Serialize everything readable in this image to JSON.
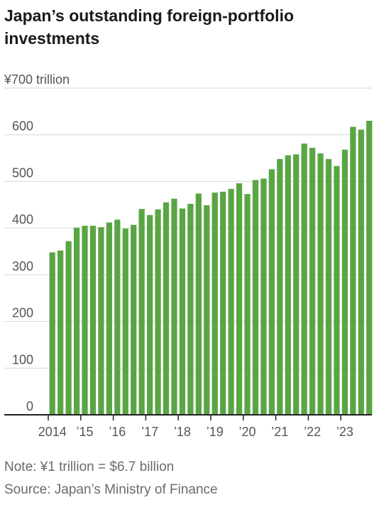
{
  "title": "Japan’s outstanding foreign-portfolio investments",
  "note": "Note: ¥1 trillion = $6.7 billion",
  "source": "Source: Japan’s Ministry of Finance",
  "chart_data": {
    "type": "bar",
    "title": "Japan’s outstanding foreign-portfolio investments",
    "unit_label": "¥700 trillion",
    "ylim": [
      0,
      700
    ],
    "yticks": [
      0,
      100,
      200,
      300,
      400,
      500,
      600
    ],
    "ytick_labels": [
      "0",
      "100",
      "200",
      "300",
      "400",
      "500",
      "600"
    ],
    "top_tick_label": "¥700 trillion",
    "grid": true,
    "bar_color": "#5aa543",
    "categories": [
      "2014 Q1",
      "2014 Q2",
      "2014 Q3",
      "2014 Q4",
      "2015 Q1",
      "2015 Q2",
      "2015 Q3",
      "2015 Q4",
      "2016 Q1",
      "2016 Q2",
      "2016 Q3",
      "2016 Q4",
      "2017 Q1",
      "2017 Q2",
      "2017 Q3",
      "2017 Q4",
      "2018 Q1",
      "2018 Q2",
      "2018 Q3",
      "2018 Q4",
      "2019 Q1",
      "2019 Q2",
      "2019 Q3",
      "2019 Q4",
      "2020 Q1",
      "2020 Q2",
      "2020 Q3",
      "2020 Q4",
      "2021 Q1",
      "2021 Q2",
      "2021 Q3",
      "2021 Q4",
      "2022 Q1",
      "2022 Q2",
      "2022 Q3",
      "2022 Q4",
      "2023 Q1",
      "2023 Q2",
      "2023 Q3",
      "2023 Q4"
    ],
    "values": [
      348,
      352,
      372,
      401,
      405,
      405,
      402,
      412,
      418,
      399,
      407,
      441,
      428,
      440,
      455,
      463,
      442,
      452,
      474,
      449,
      476,
      478,
      484,
      496,
      473,
      503,
      506,
      526,
      548,
      556,
      558,
      581,
      572,
      560,
      548,
      533,
      568,
      617,
      611,
      630
    ],
    "xtick_labels": [
      {
        "label": "2014",
        "index": 0
      },
      {
        "label": "’15",
        "index": 4
      },
      {
        "label": "’16",
        "index": 8
      },
      {
        "label": "’17",
        "index": 12
      },
      {
        "label": "’18",
        "index": 16
      },
      {
        "label": "’19",
        "index": 20
      },
      {
        "label": "’20",
        "index": 24
      },
      {
        "label": "’21",
        "index": 28
      },
      {
        "label": "’22",
        "index": 32
      },
      {
        "label": "’23",
        "index": 36
      }
    ]
  }
}
